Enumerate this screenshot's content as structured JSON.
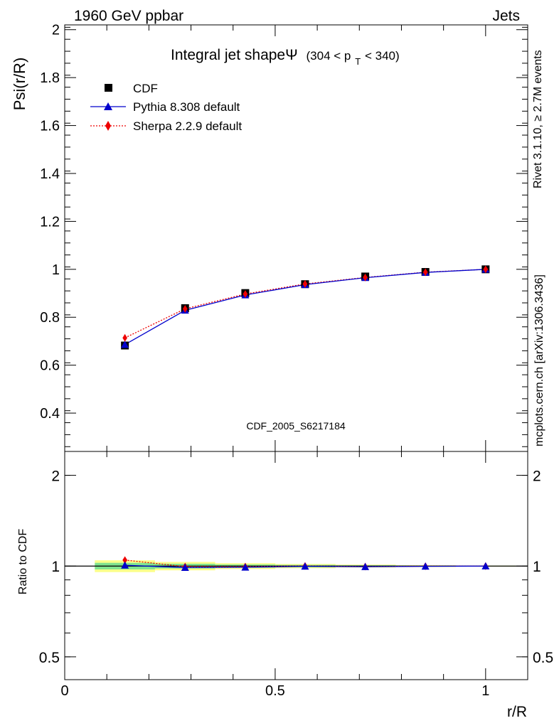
{
  "header": {
    "left": "1960 GeV ppbar",
    "right": "Jets"
  },
  "side_labels": {
    "rivet": "Rivet 3.1.10, ≥ 2.7M events",
    "mcplots": "mcplots.cern.ch [arXiv:1306.3436]"
  },
  "chart_data": [
    {
      "type": "line",
      "title": "Integral jet shapeΨ",
      "title_suffix_main": "(304 < p",
      "title_suffix_sub": "T",
      "title_suffix_end": " < 340)",
      "ylabel": "Psi(r/R)",
      "xlabel": "",
      "watermark": "CDF_2005_S6217184",
      "xlim": [
        0,
        1.1
      ],
      "ylim": [
        0.24,
        2.02
      ],
      "yticks": [
        0.4,
        0.6,
        0.8,
        1,
        1.2,
        1.4,
        1.6,
        1.8,
        2
      ],
      "ytick_labels": [
        "0.4",
        "0.6",
        "0.8",
        "1",
        "1.2",
        "1.4",
        "1.6",
        "1.8",
        "2"
      ],
      "legend_position": "top-left",
      "x": [
        0.143,
        0.286,
        0.429,
        0.571,
        0.714,
        0.857,
        1.0
      ],
      "series": [
        {
          "name": "CDF",
          "marker": "square",
          "color": "#000000",
          "values": [
            0.682,
            0.838,
            0.901,
            0.938,
            0.97,
            0.989,
            1.0
          ],
          "errors": [
            0.01,
            0.01,
            0.008,
            0.007,
            0.006,
            0.005,
            0.004
          ]
        },
        {
          "name": "Pythia 8.308 default",
          "marker": "triangle",
          "color": "#0000cc",
          "line": "solid",
          "values": [
            0.686,
            0.829,
            0.893,
            0.936,
            0.965,
            0.987,
            1.0
          ]
        },
        {
          "name": "Sherpa 2.2.9 default",
          "marker": "diamond",
          "color": "#ee0000",
          "line": "dotted",
          "values": [
            0.714,
            0.835,
            0.897,
            0.939,
            0.966,
            0.988,
            1.0
          ]
        }
      ]
    },
    {
      "type": "line",
      "ylabel": "Ratio to CDF",
      "xlabel": "r/R",
      "log_y": true,
      "xlim": [
        0,
        1.1
      ],
      "ylim": [
        0.42,
        2.4
      ],
      "yticks": [
        0.5,
        1,
        2
      ],
      "ytick_labels": [
        "0.5",
        "1",
        "2"
      ],
      "xticks": [
        0,
        0.5,
        1
      ],
      "xtick_labels": [
        "0",
        "0.5",
        "1"
      ],
      "x": [
        0.143,
        0.286,
        0.429,
        0.571,
        0.714,
        0.857,
        1.0
      ],
      "bin_edges": [
        0.0715,
        0.2145,
        0.3575,
        0.5005,
        0.6435,
        0.7865,
        0.9295,
        1.0715
      ],
      "band_inner": [
        0.025,
        0.018,
        0.012,
        0.009,
        0.006,
        0.004,
        0.002
      ],
      "band_outer": [
        0.045,
        0.032,
        0.022,
        0.016,
        0.011,
        0.007,
        0.004
      ],
      "band_colors": {
        "inner": "#7fe38f",
        "outer": "#fbff8a"
      },
      "series": [
        {
          "name": "Pythia 8.308 default",
          "marker": "triangle",
          "color": "#0000cc",
          "line": "solid",
          "values": [
            1.006,
            0.989,
            0.991,
            0.998,
            0.995,
            0.998,
            1.0
          ]
        },
        {
          "name": "Sherpa 2.2.9 default",
          "marker": "diamond",
          "color": "#ee0000",
          "line": "dotted",
          "values": [
            1.047,
            0.996,
            0.996,
            1.001,
            0.996,
            0.999,
            1.0
          ]
        }
      ]
    }
  ]
}
